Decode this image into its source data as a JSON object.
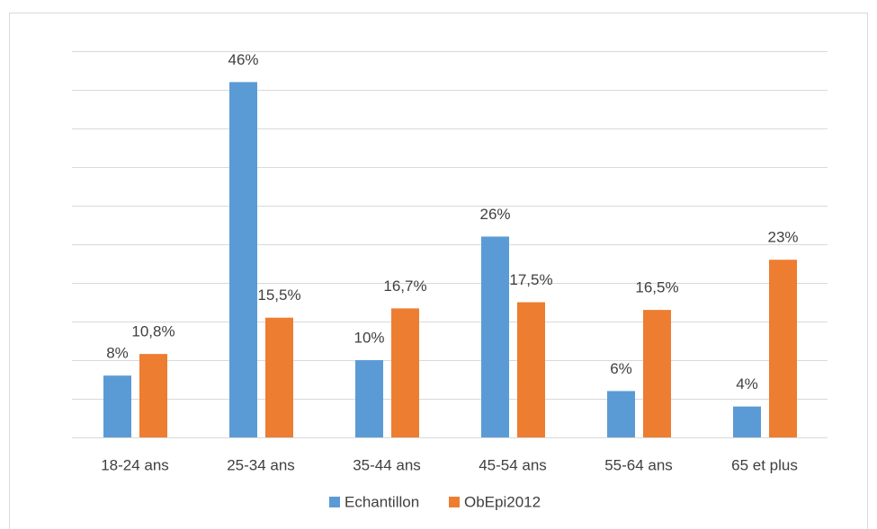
{
  "chart_data": {
    "type": "bar",
    "categories": [
      "18-24 ans",
      "25-34 ans",
      "35-44 ans",
      "45-54 ans",
      "55-64 ans",
      "65 et plus"
    ],
    "series": [
      {
        "name": "Echantillon",
        "color": "#5b9bd5",
        "values": [
          8,
          46,
          10,
          26,
          6,
          4
        ],
        "value_labels": [
          "8%",
          "46%",
          "10%",
          "26%",
          "6%",
          "4%"
        ]
      },
      {
        "name": "ObEpi2012",
        "color": "#ed7d31",
        "values": [
          10.8,
          15.5,
          16.7,
          17.5,
          16.5,
          23
        ],
        "value_labels": [
          "10,8%",
          "15,5%",
          "16,7%",
          "17,5%",
          "16,5%",
          "23%"
        ]
      }
    ],
    "ylim": [
      0,
      50
    ],
    "yticks": [
      0,
      5,
      10,
      15,
      20,
      25,
      30,
      35,
      40,
      45,
      50
    ],
    "grid": true,
    "legend": "bottom"
  }
}
